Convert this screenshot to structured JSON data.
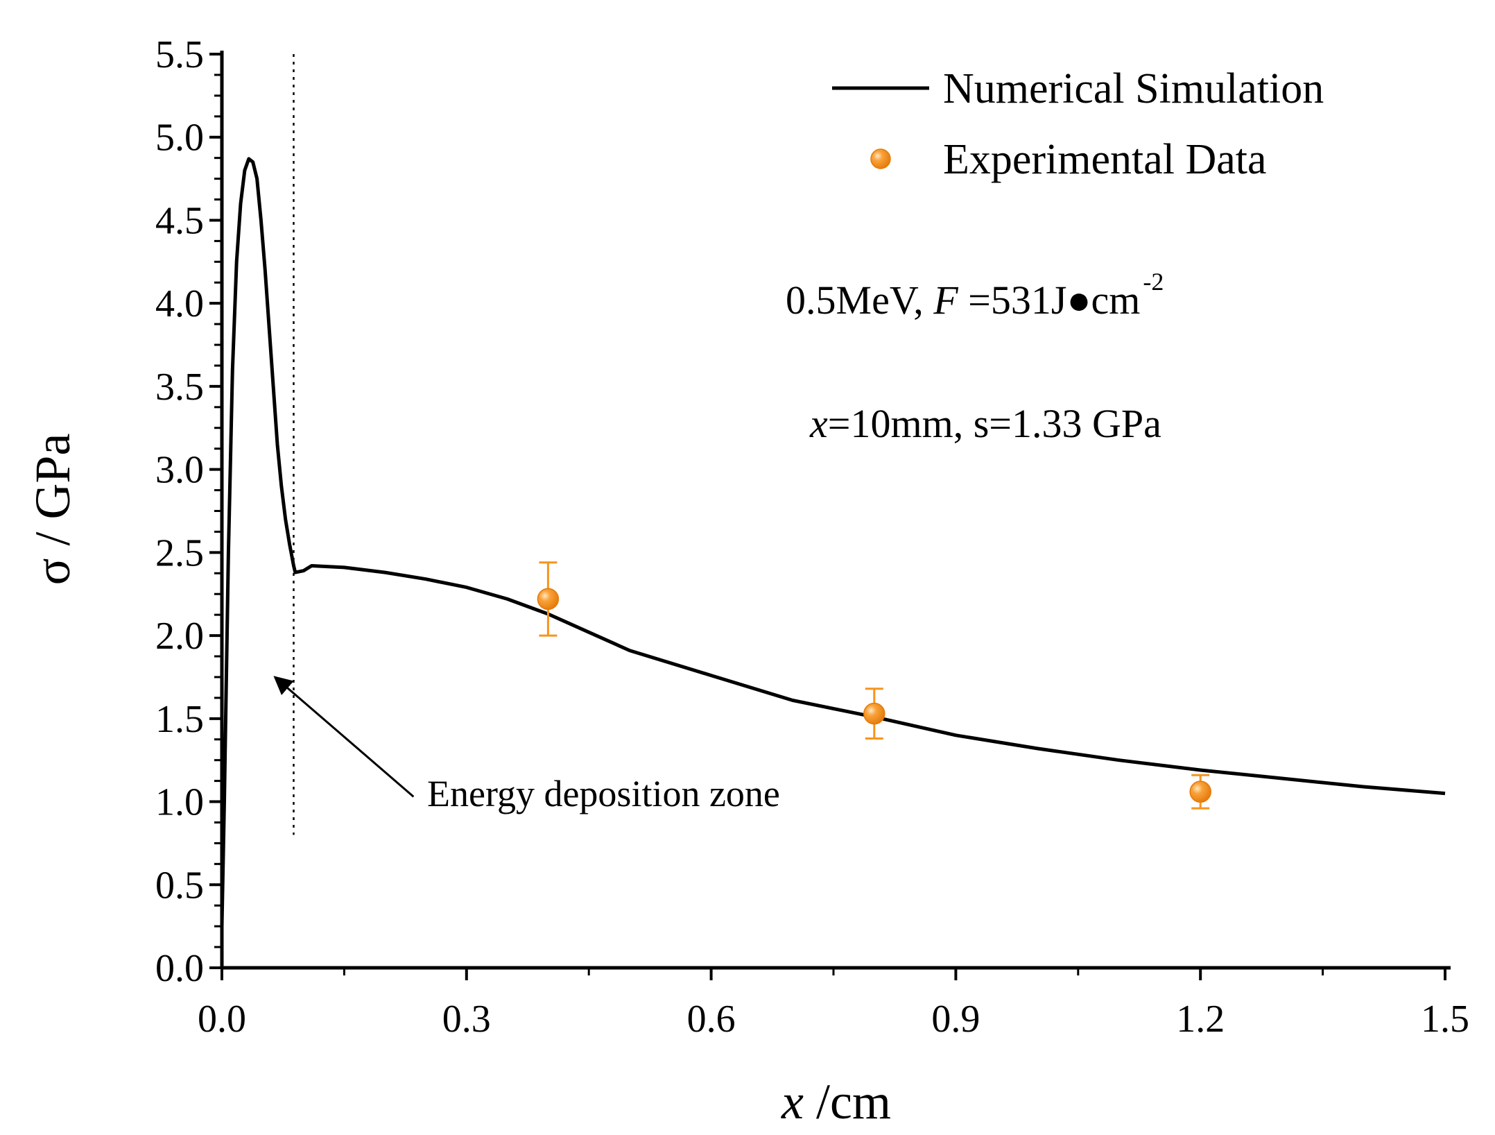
{
  "chart_data": {
    "type": "line",
    "title": "",
    "xlabel": {
      "var": "x",
      "unit": " /cm"
    },
    "ylabel": {
      "var": "σ",
      "unit": "  / GPa"
    },
    "xlim": [
      0,
      1.5
    ],
    "ylim": [
      0,
      5.5
    ],
    "x_ticks": [
      0.0,
      0.3,
      0.6,
      0.9,
      1.2,
      1.5
    ],
    "x_tick_labels": [
      "0.0",
      "0.3",
      "0.6",
      "0.9",
      "1.2",
      "1.5"
    ],
    "y_ticks": [
      0.0,
      0.5,
      1.0,
      1.5,
      2.0,
      2.5,
      3.0,
      3.5,
      4.0,
      4.5,
      5.0,
      5.5
    ],
    "y_tick_labels": [
      "0.0",
      "0.5",
      "1.0",
      "1.5",
      "2.0",
      "2.5",
      "3.0",
      "3.5",
      "4.0",
      "4.5",
      "5.0",
      "5.5"
    ],
    "series": [
      {
        "name": "Numerical Simulation",
        "kind": "line",
        "color": "#000000",
        "x": [
          0.0,
          0.003,
          0.008,
          0.013,
          0.018,
          0.023,
          0.028,
          0.033,
          0.038,
          0.043,
          0.048,
          0.053,
          0.058,
          0.063,
          0.068,
          0.073,
          0.078,
          0.083,
          0.088,
          0.09,
          0.1,
          0.11,
          0.15,
          0.2,
          0.25,
          0.3,
          0.35,
          0.4,
          0.45,
          0.5,
          0.6,
          0.7,
          0.8,
          0.9,
          1.0,
          1.1,
          1.2,
          1.3,
          1.4,
          1.5
        ],
        "y": [
          0.25,
          1.0,
          2.5,
          3.6,
          4.25,
          4.6,
          4.8,
          4.87,
          4.85,
          4.75,
          4.5,
          4.2,
          3.85,
          3.5,
          3.15,
          2.9,
          2.7,
          2.55,
          2.42,
          2.38,
          2.39,
          2.42,
          2.41,
          2.38,
          2.34,
          2.29,
          2.22,
          2.13,
          2.02,
          1.91,
          1.76,
          1.61,
          1.51,
          1.4,
          1.32,
          1.25,
          1.19,
          1.14,
          1.09,
          1.05
        ]
      },
      {
        "name": "Experimental Data",
        "kind": "scatter",
        "color": "#F7941D",
        "x": [
          0.4,
          0.8,
          1.2
        ],
        "y": [
          2.22,
          1.53,
          1.06
        ],
        "err_low": [
          2.0,
          1.38,
          0.96
        ],
        "err_high": [
          2.44,
          1.68,
          1.16
        ]
      }
    ],
    "vline": {
      "x": 0.088,
      "y_range": [
        0.8,
        5.5
      ],
      "style": "dotted"
    },
    "legend": {
      "position": "top-right"
    },
    "annotations": {
      "params_line1": {
        "text": "0.5MeV,  ",
        "var": "F",
        "rest": " =531J●cm",
        "sup": "-2"
      },
      "params_line2": {
        "var": "x",
        "rest": "=10mm, s=1.33 GPa"
      },
      "arrow_label": "Energy deposition zone",
      "arrow_points_to": {
        "x": 0.065,
        "y": 1.75
      },
      "arrow_from_data": {
        "x": 0.235,
        "y": 1.03
      }
    }
  }
}
